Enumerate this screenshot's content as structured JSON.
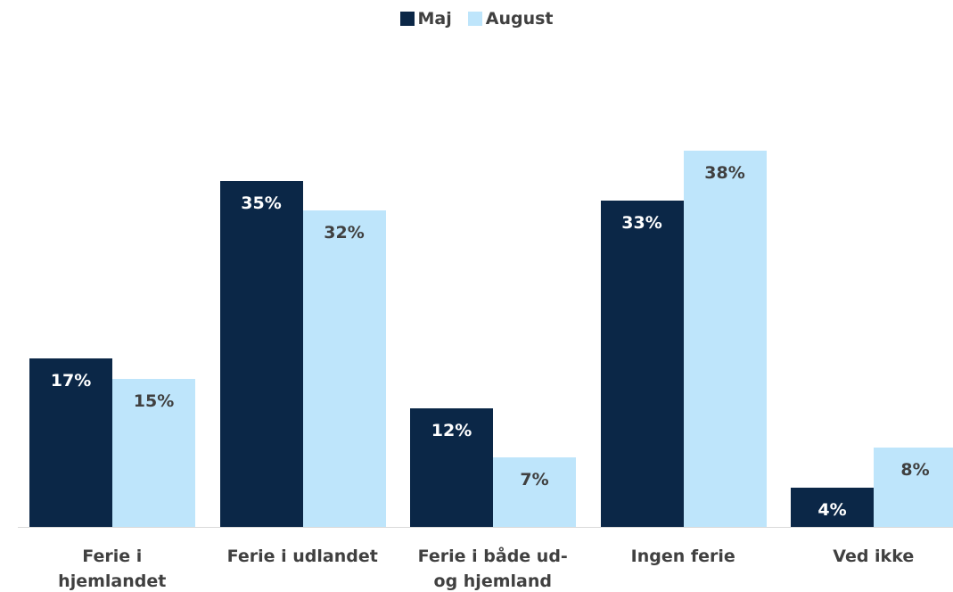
{
  "chart_data": {
    "type": "bar",
    "categories": [
      "Ferie i\nhjemlandet",
      "Ferie i udlandet",
      "Ferie i både ud-\nog hjemland",
      "Ingen ferie",
      "Ved ikke"
    ],
    "series": [
      {
        "name": "Maj",
        "color": "#0b2747",
        "label_color": "#ffffff",
        "values": [
          17,
          35,
          12,
          33,
          4
        ],
        "value_labels": [
          "17%",
          "35%",
          "12%",
          "33%",
          "4%"
        ]
      },
      {
        "name": "August",
        "color": "#bee5fb",
        "label_color": "#404040",
        "values": [
          15,
          32,
          7,
          38,
          8
        ],
        "value_labels": [
          "15%",
          "32%",
          "7%",
          "38%",
          "8%"
        ]
      }
    ],
    "legend": "top"
  }
}
